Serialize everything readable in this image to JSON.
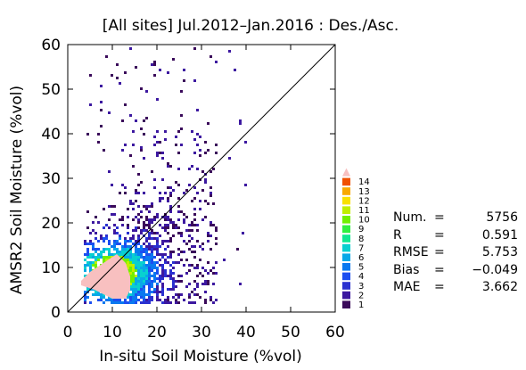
{
  "chart_data": {
    "type": "heatmap",
    "title": "[All sites] Jul.2012–Jan.2016 : Des./Asc.",
    "xlabel": "In-situ Soil Moisture (%vol)",
    "ylabel": "AMSR2 Soil Moisture (%vol)",
    "xlim": [
      0,
      60
    ],
    "ylim": [
      0,
      60
    ],
    "xticks": [
      "0",
      "10",
      "20",
      "30",
      "40",
      "50",
      "60"
    ],
    "yticks": [
      "0",
      "10",
      "20",
      "30",
      "40",
      "50",
      "60"
    ],
    "one_to_one_line": true,
    "grid": false,
    "colorbar": {
      "labels": [
        "1",
        "2",
        "3",
        "4",
        "5",
        "6",
        "7",
        "8",
        "9",
        "10",
        "11",
        "12",
        "13",
        "14"
      ],
      "colors": [
        "#3a0a5a",
        "#3c18a0",
        "#2a30d0",
        "#1c4ef0",
        "#0a78f0",
        "#08a8e8",
        "#08d0d0",
        "#10e890",
        "#30f040",
        "#70f000",
        "#c0ee00",
        "#f8e000",
        "#f8a800",
        "#f05000"
      ],
      "overflow_color": "#f8c0c0"
    },
    "dense_region": {
      "description_color": "#f8c0c0",
      "polygon_data_units": [
        [
          3,
          7
        ],
        [
          5,
          9
        ],
        [
          8,
          11
        ],
        [
          11,
          13
        ],
        [
          13,
          11
        ],
        [
          14,
          8
        ],
        [
          14,
          5
        ],
        [
          13,
          3
        ],
        [
          10,
          3
        ],
        [
          6,
          5
        ],
        [
          3,
          6
        ]
      ]
    },
    "stats": [
      {
        "name": "Num.",
        "eq": "=",
        "value": "5756"
      },
      {
        "name": "R",
        "eq": "=",
        "value": "0.591"
      },
      {
        "name": "RMSE",
        "eq": "=",
        "value": "5.753"
      },
      {
        "name": "Bias",
        "eq": "=",
        "value": "−0.049"
      },
      {
        "name": "MAE",
        "eq": "=",
        "value": "3.662"
      }
    ]
  }
}
